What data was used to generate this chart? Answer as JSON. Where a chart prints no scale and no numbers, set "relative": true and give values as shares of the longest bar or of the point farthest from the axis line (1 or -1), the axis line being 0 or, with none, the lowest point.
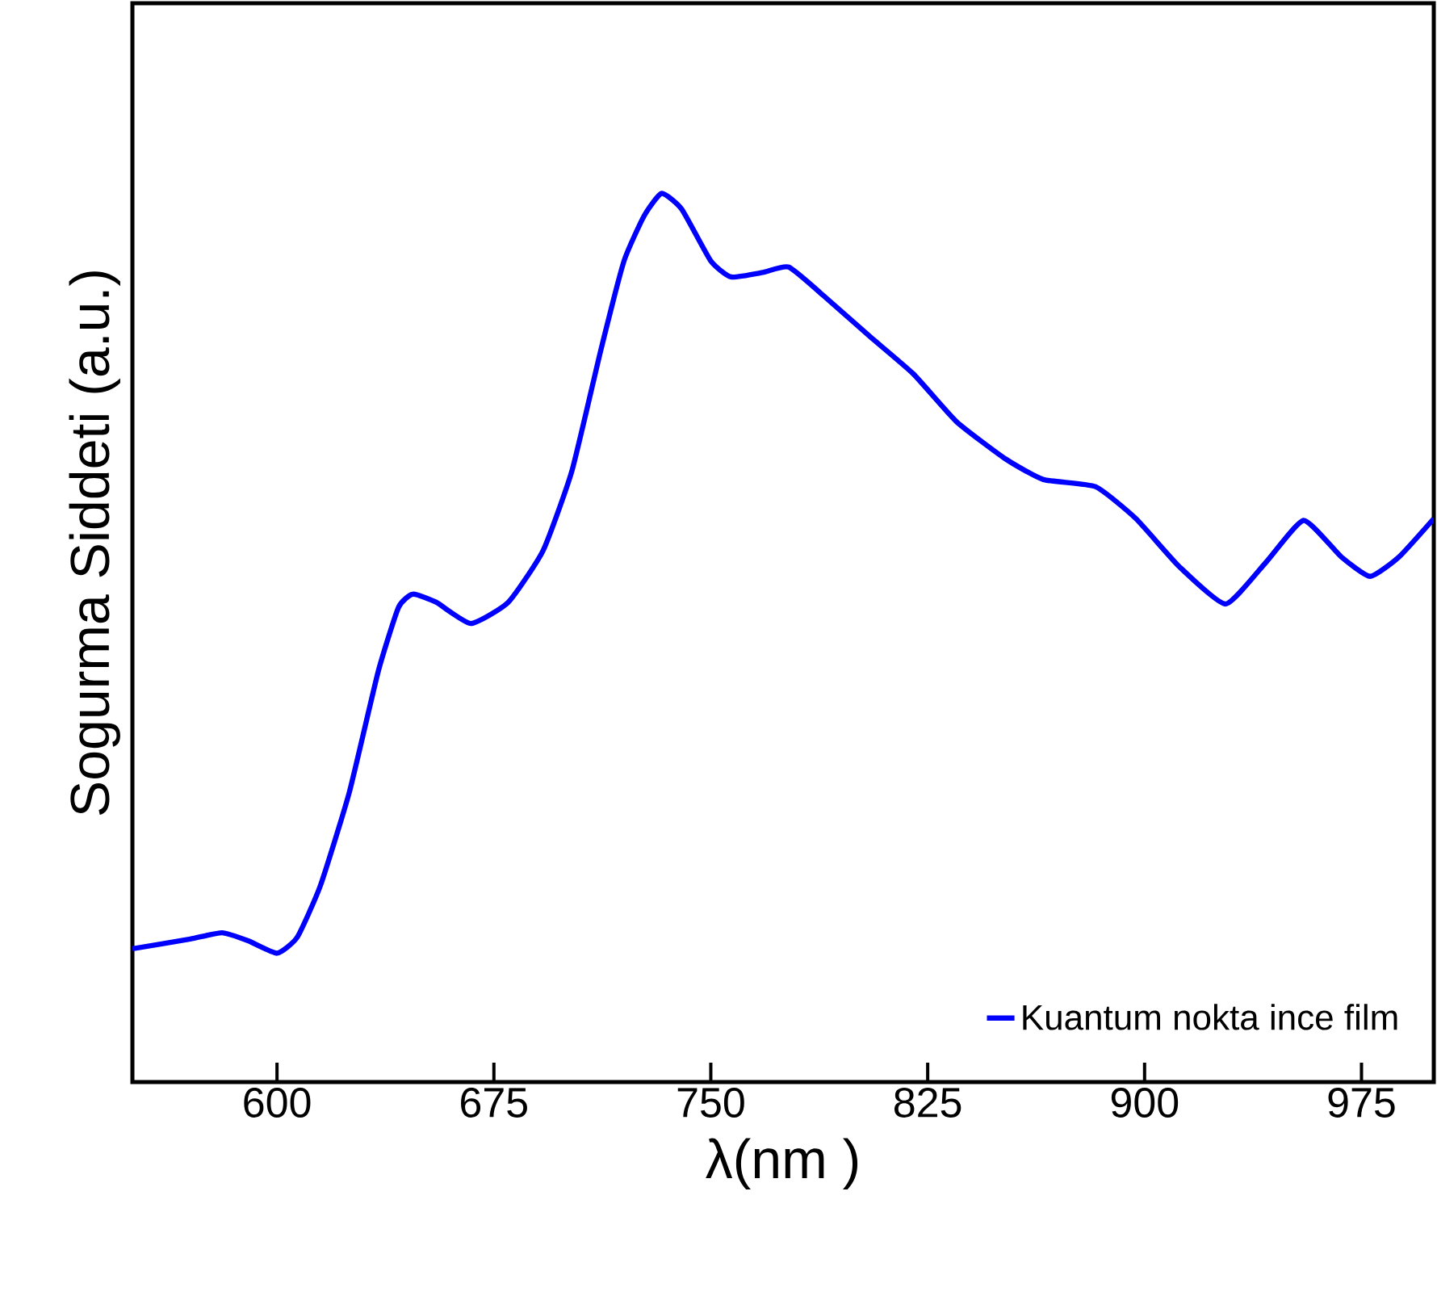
{
  "chart_data": {
    "type": "line",
    "xlabel": "λ(nm )",
    "ylabel": "Sogurma Siddeti (a.u.)",
    "relative": true,
    "xlim": [
      550,
      1000
    ],
    "xticks": [
      600,
      675,
      750,
      825,
      900,
      975
    ],
    "legend": "bottom right",
    "series": [
      {
        "name": "Kuantum nokta ince film",
        "color": "#0000ff",
        "x": [
          550,
          570,
          581,
          590,
          600,
          607,
          615,
          625,
          635,
          642,
          647,
          655,
          667,
          680,
          692,
          702,
          712,
          720,
          727,
          733,
          740,
          750,
          757,
          768,
          777,
          790,
          805,
          820,
          835,
          852,
          865,
          883,
          897,
          912,
          928,
          942,
          955,
          968,
          978,
          988,
          1000
        ],
        "values": [
          0.15,
          0.161,
          0.168,
          0.159,
          0.145,
          0.163,
          0.221,
          0.326,
          0.462,
          0.534,
          0.549,
          0.54,
          0.516,
          0.54,
          0.598,
          0.688,
          0.824,
          0.924,
          0.975,
          1.0,
          0.982,
          0.924,
          0.906,
          0.911,
          0.917,
          0.882,
          0.839,
          0.797,
          0.743,
          0.701,
          0.678,
          0.67,
          0.634,
          0.58,
          0.538,
          0.585,
          0.632,
          0.591,
          0.569,
          0.591,
          0.634
        ]
      }
    ]
  }
}
